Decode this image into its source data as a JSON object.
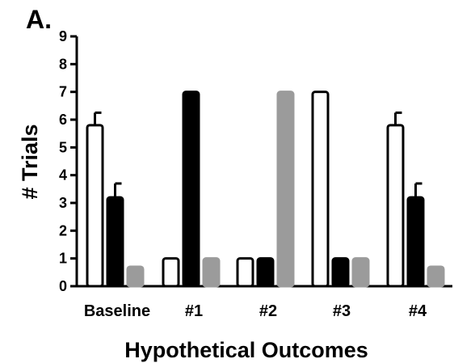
{
  "panel_label": "A.",
  "colors": {
    "white_bar": "#ffffff",
    "black_bar": "#000000",
    "gray_bar": "#9b9b9b",
    "axis": "#000000"
  },
  "chart_data": {
    "type": "bar",
    "xlabel": "Hypothetical Outcomes",
    "ylabel": "# Trials",
    "ylim": [
      0,
      9
    ],
    "yticks": [
      0,
      1,
      2,
      3,
      4,
      5,
      6,
      7,
      8,
      9
    ],
    "categories": [
      "Baseline",
      "#1",
      "#2",
      "#3",
      "#4"
    ],
    "series": [
      {
        "color": "white",
        "values": [
          5.8,
          1,
          1,
          7,
          5.8
        ],
        "error": [
          0.45,
          0,
          0,
          0,
          0.45
        ]
      },
      {
        "color": "black",
        "values": [
          3.2,
          7,
          1,
          1,
          3.2
        ],
        "error": [
          0.5,
          0,
          0,
          0,
          0.5
        ]
      },
      {
        "color": "gray",
        "values": [
          0.7,
          1,
          7,
          1,
          0.7
        ],
        "error": [
          0,
          0,
          0,
          0,
          0
        ]
      }
    ],
    "grid": false
  }
}
